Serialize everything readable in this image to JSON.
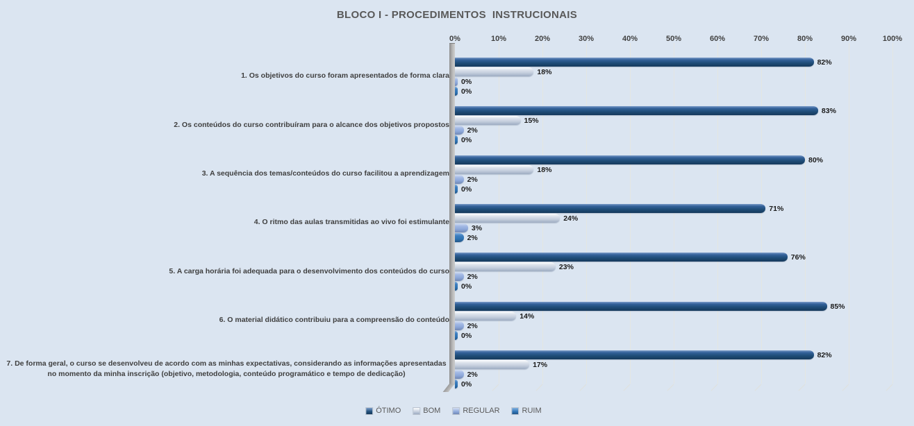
{
  "title": "BLOCO I - PROCEDIMENTOS  INSTRUCIONAIS",
  "chart_data": {
    "type": "bar",
    "orientation": "horizontal",
    "title": "BLOCO I - PROCEDIMENTOS  INSTRUCIONAIS",
    "categories": [
      "1. Os objetivos do curso foram apresentados de forma clara",
      "2. Os conteúdos do curso contribuíram para o alcance dos objetivos propostos",
      "3. A sequência dos temas/conteúdos do curso facilitou a aprendizagem",
      "4. O ritmo das aulas transmitidas ao vivo foi estimulante",
      "5. A carga horária foi adequada para o desenvolvimento dos conteúdos do curso",
      "6. O material didático contribuiu para a compreensão do conteúdo",
      "7. De forma geral, o curso se desenvolveu de acordo com as minhas expectativas, considerando as informações apresentadas no momento da minha inscrição (objetivo, metodologia, conteúdo programático e tempo de dedicação)"
    ],
    "series": [
      {
        "name": "ÓTIMO",
        "color": "#1F4E79",
        "values": [
          82,
          83,
          80,
          71,
          76,
          85,
          82
        ]
      },
      {
        "name": "BOM",
        "color": "#C4CEDD",
        "values": [
          18,
          15,
          18,
          24,
          23,
          14,
          17
        ]
      },
      {
        "name": "REGULAR",
        "color": "#8EA9DB",
        "values": [
          0,
          2,
          2,
          3,
          2,
          2,
          2
        ]
      },
      {
        "name": "RUIM",
        "color": "#2E74B5",
        "values": [
          0,
          0,
          0,
          2,
          0,
          0,
          0
        ]
      }
    ],
    "x_ticks": [
      "0%",
      "10%",
      "20%",
      "30%",
      "40%",
      "50%",
      "60%",
      "70%",
      "80%",
      "90%",
      "100%"
    ],
    "xlim": [
      0,
      100
    ],
    "value_suffix": "%",
    "data_labels": true,
    "grid": true,
    "legend_position": "bottom",
    "background_color": "#DBE5F1"
  }
}
